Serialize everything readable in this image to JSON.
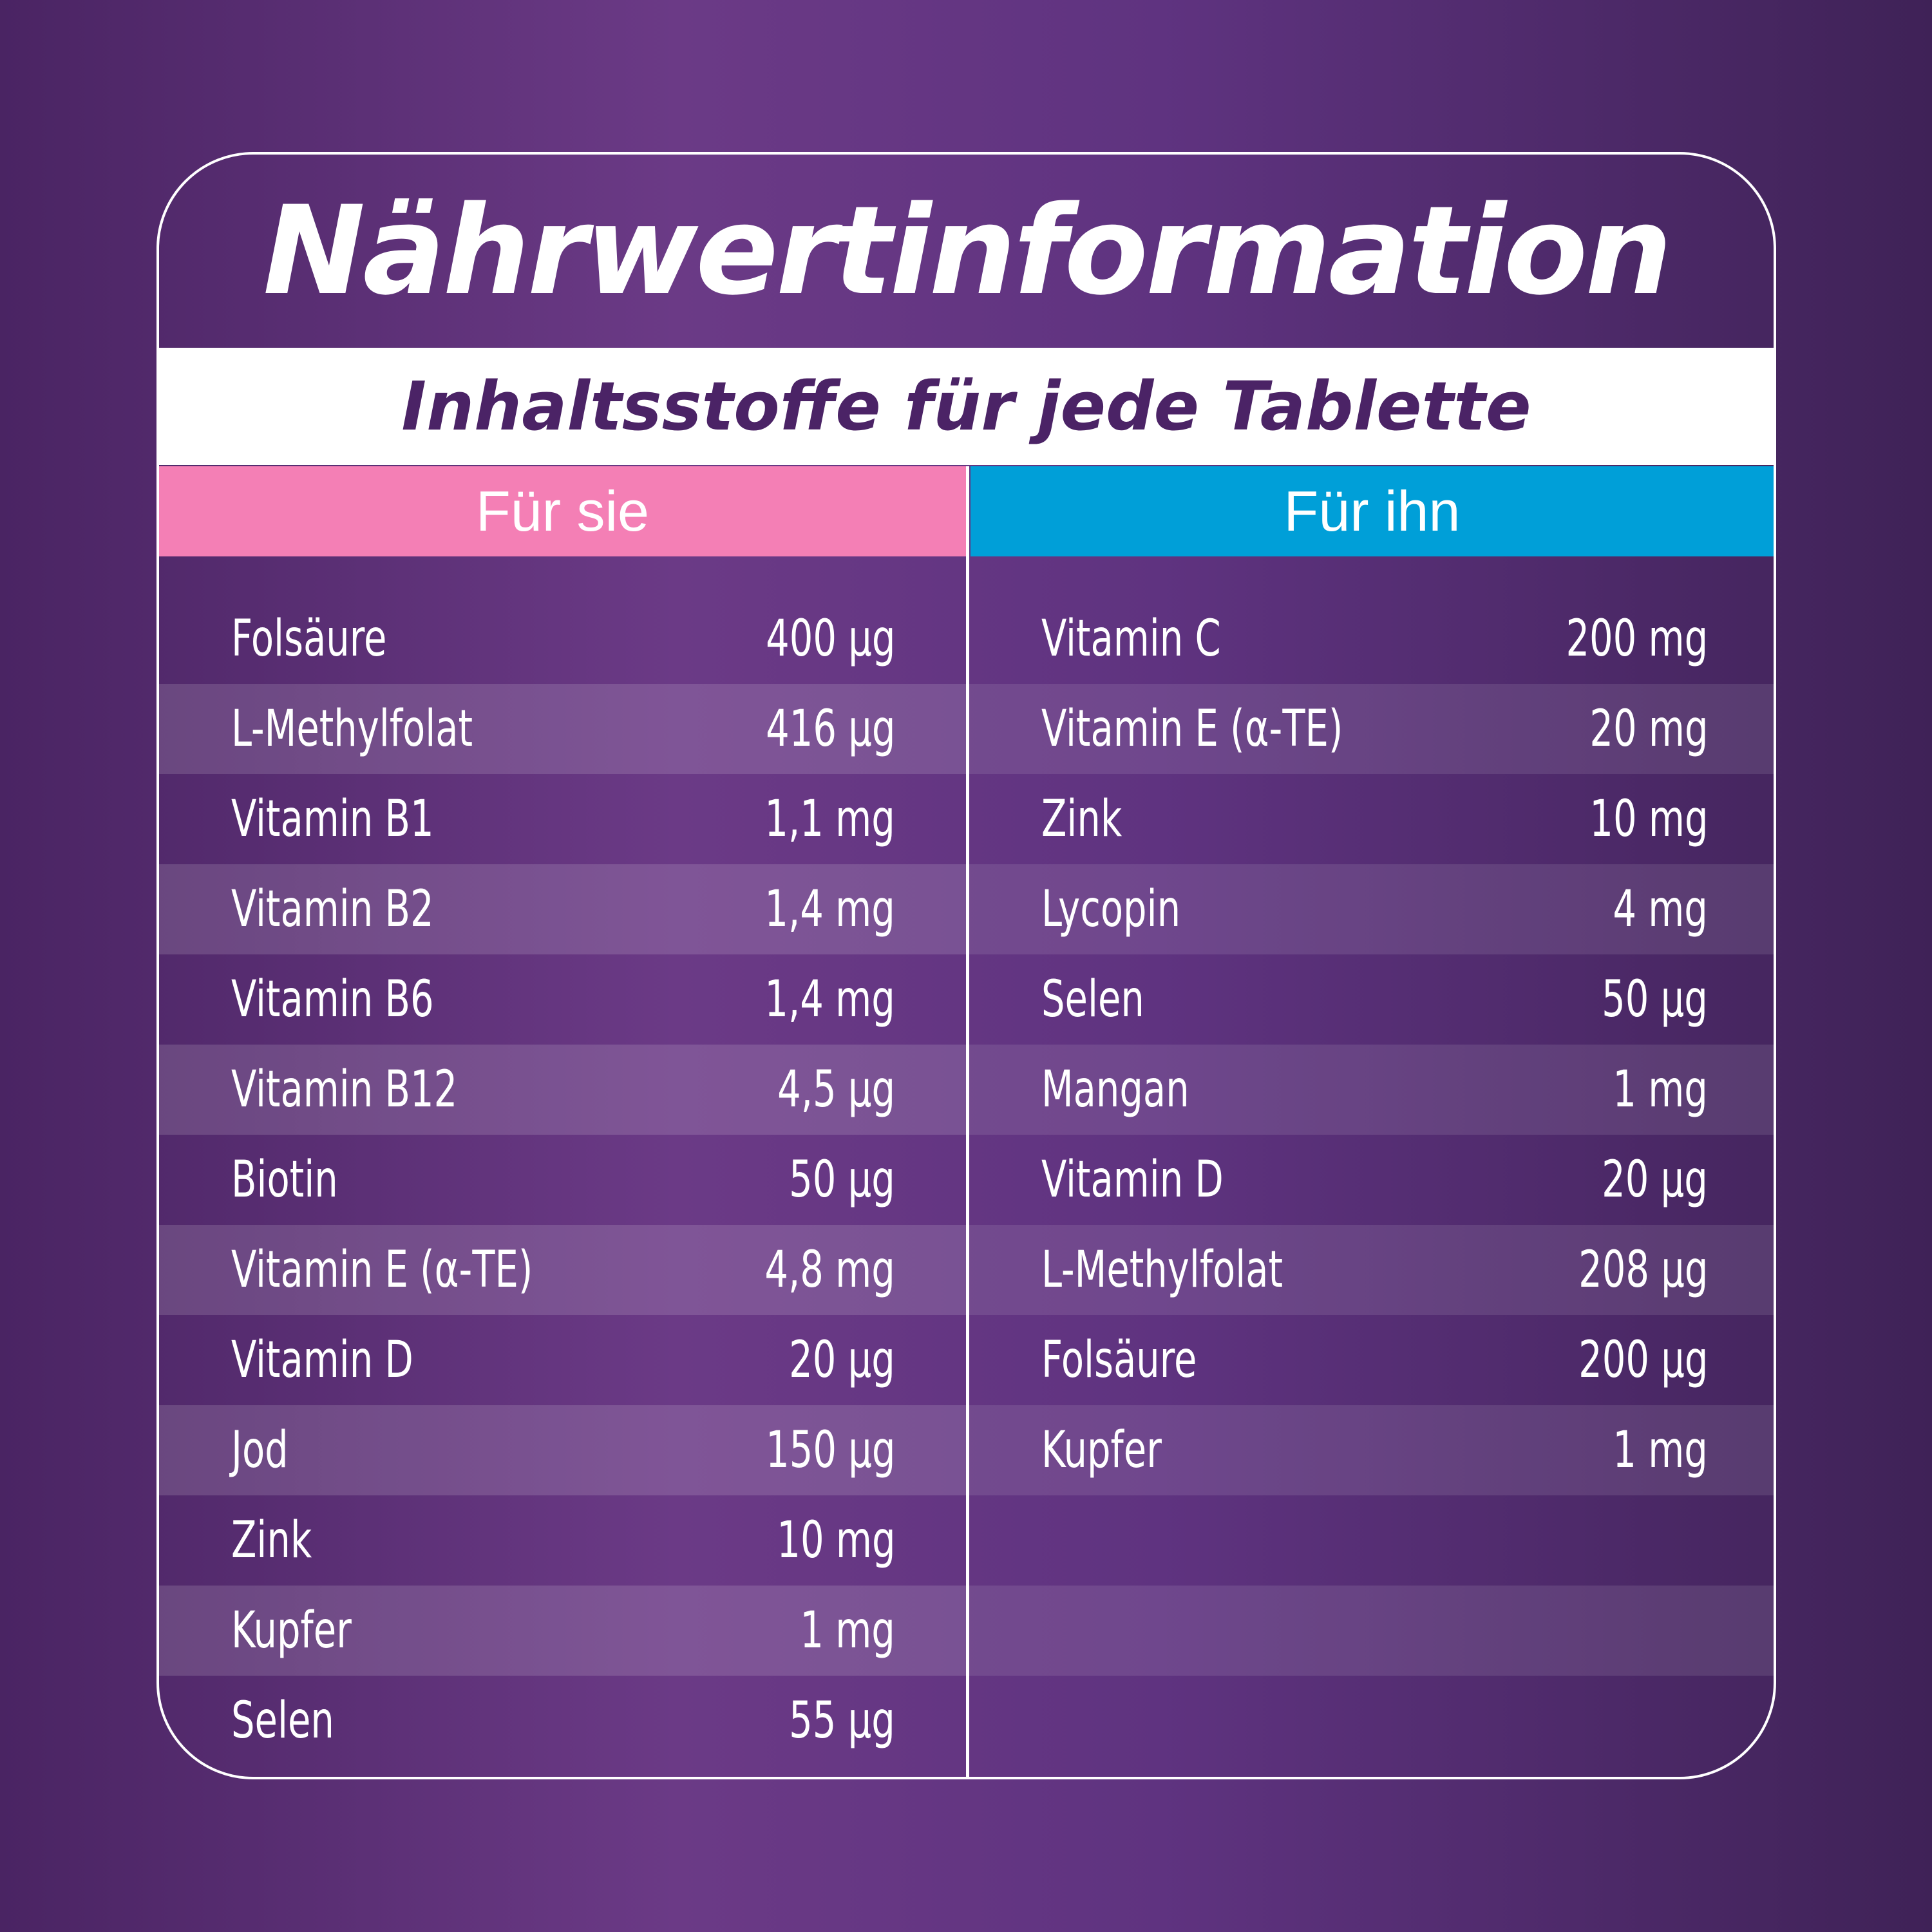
{
  "title": "Nährwertinformation",
  "subtitle": "Inhaltsstoffe für jede Tablette",
  "colors": {
    "pink": "#f47fb5",
    "blue": "#009fd8",
    "purple_dark": "#4b2366",
    "white": "#ffffff"
  },
  "columns": [
    {
      "header": "Für sie",
      "rows": [
        {
          "name": "Folsäure",
          "value": "400 µg"
        },
        {
          "name": "L-Methylfolat",
          "value": "416 µg"
        },
        {
          "name": "Vitamin B1",
          "value": "1,1 mg"
        },
        {
          "name": "Vitamin B2",
          "value": "1,4 mg"
        },
        {
          "name": "Vitamin B6",
          "value": "1,4 mg"
        },
        {
          "name": "Vitamin B12",
          "value": "4,5 µg"
        },
        {
          "name": "Biotin",
          "value": "50 µg"
        },
        {
          "name": "Vitamin E (α-TE)",
          "value": "4,8 mg"
        },
        {
          "name": "Vitamin D",
          "value": "20 µg"
        },
        {
          "name": "Jod",
          "value": "150 µg"
        },
        {
          "name": "Zink",
          "value": "10 mg"
        },
        {
          "name": "Kupfer",
          "value": "1 mg"
        },
        {
          "name": "Selen",
          "value": "55 µg"
        }
      ]
    },
    {
      "header": "Für ihn",
      "rows": [
        {
          "name": "Vitamin C",
          "value": "200 mg"
        },
        {
          "name": "Vitamin E (α-TE)",
          "value": "20 mg"
        },
        {
          "name": "Zink",
          "value": "10 mg"
        },
        {
          "name": "Lycopin",
          "value": "4 mg"
        },
        {
          "name": "Selen",
          "value": "50 µg"
        },
        {
          "name": "Mangan",
          "value": "1 mg"
        },
        {
          "name": "Vitamin D",
          "value": "20 µg"
        },
        {
          "name": "L-Methylfolat",
          "value": "208 µg"
        },
        {
          "name": "Folsäure",
          "value": "200 µg"
        },
        {
          "name": "Kupfer",
          "value": "1 mg"
        },
        {
          "name": "",
          "value": ""
        },
        {
          "name": "",
          "value": ""
        }
      ]
    }
  ]
}
